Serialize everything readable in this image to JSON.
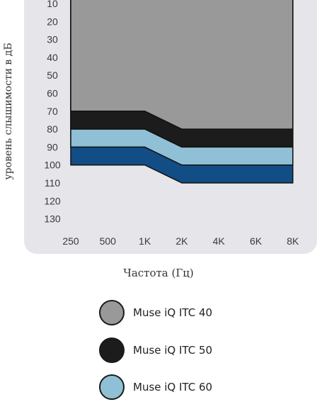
{
  "chart_data": {
    "type": "area",
    "xlabel": "Частота (Гц)",
    "ylabel": "уровень слышимости в дБ",
    "x_categories": [
      "250",
      "500",
      "1K",
      "2K",
      "4K",
      "6K",
      "8K"
    ],
    "y_ticks": [
      "10",
      "20",
      "30",
      "40",
      "50",
      "60",
      "70",
      "80",
      "90",
      "100",
      "110",
      "120",
      "130"
    ],
    "ylim": [
      130,
      10
    ],
    "x_points": [
      250,
      1000,
      2000,
      8000
    ],
    "series": [
      {
        "name": "Muse iQ ITC 40",
        "color": "#999999",
        "lower": [
          70,
          70,
          80,
          80
        ]
      },
      {
        "name": "Muse iQ ITC 50",
        "color": "#1c1c1c",
        "lower": [
          80,
          80,
          90,
          90
        ]
      },
      {
        "name": "Muse iQ ITC 60",
        "color": "#8fc0d6",
        "lower": [
          90,
          90,
          100,
          100
        ]
      },
      {
        "color": "#124d85",
        "lower": [
          100,
          100,
          110,
          110
        ]
      }
    ]
  },
  "legend": [
    {
      "label": "Muse iQ ITC 40",
      "color": "#999999"
    },
    {
      "label": "Muse iQ ITC 50",
      "color": "#1c1c1c"
    },
    {
      "label": "Muse iQ ITC 60",
      "color": "#8fc0d6"
    }
  ],
  "colors": {
    "panel": "#e6e6ea",
    "tick_text": "#3a3a3a"
  }
}
